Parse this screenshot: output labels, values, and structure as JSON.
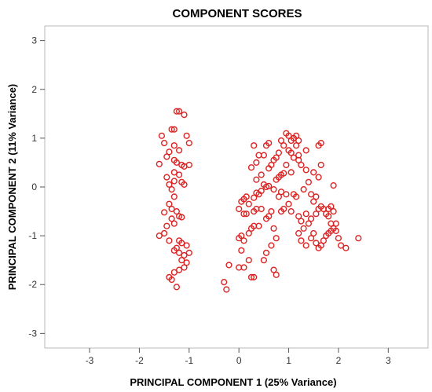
{
  "chart_data": {
    "type": "scatter",
    "title": "COMPONENT SCORES",
    "xlabel": "PRINCIPAL COMPONENT 1 (25% Variance)",
    "ylabel": "PRINCIPAL COMPONENT 2 (11% Variance)",
    "xlim": [
      -3.9,
      3.8
    ],
    "ylim": [
      -3.3,
      3.3
    ],
    "xticks": [
      -3,
      -2,
      -1,
      0,
      1,
      2,
      3
    ],
    "yticks": [
      -3,
      -2,
      -1,
      0,
      1,
      2,
      3
    ],
    "xtick_labels": [
      "-3",
      "-2",
      "-1",
      "0",
      "1",
      "2",
      "3"
    ],
    "ytick_labels": [
      "-3",
      "-2",
      "-1",
      "0",
      "1",
      "2",
      "3"
    ],
    "grid": false,
    "marker": "open-circle",
    "marker_color": "#dd2222",
    "series": [
      {
        "points": [
          [
            -1.25,
            1.55
          ],
          [
            -1.2,
            1.55
          ],
          [
            -1.1,
            1.48
          ],
          [
            -1.35,
            1.18
          ],
          [
            -1.3,
            1.18
          ],
          [
            -1.55,
            1.05
          ],
          [
            -1.05,
            1.05
          ],
          [
            -1.0,
            0.9
          ],
          [
            -1.5,
            0.9
          ],
          [
            -1.4,
            0.72
          ],
          [
            -1.3,
            0.55
          ],
          [
            -1.25,
            0.5
          ],
          [
            -1.15,
            0.45
          ],
          [
            -1.1,
            0.42
          ],
          [
            -1.6,
            0.47
          ],
          [
            -1.45,
            0.62
          ],
          [
            -1.3,
            0.3
          ],
          [
            -1.2,
            0.25
          ],
          [
            -1.3,
            0.12
          ],
          [
            -1.4,
            0.05
          ],
          [
            -1.15,
            0.1
          ],
          [
            -1.35,
            -0.05
          ],
          [
            -1.3,
            -0.2
          ],
          [
            -1.4,
            -0.35
          ],
          [
            -1.35,
            -0.45
          ],
          [
            -1.25,
            -0.5
          ],
          [
            -1.2,
            -0.6
          ],
          [
            -1.35,
            -0.65
          ],
          [
            -1.5,
            -0.52
          ],
          [
            -1.15,
            -0.62
          ],
          [
            -1.3,
            -0.75
          ],
          [
            -1.45,
            -0.8
          ],
          [
            -1.5,
            -0.95
          ],
          [
            -1.6,
            -1.0
          ],
          [
            -1.2,
            -1.1
          ],
          [
            -1.15,
            -1.15
          ],
          [
            -1.25,
            -1.25
          ],
          [
            -1.3,
            -1.3
          ],
          [
            -1.2,
            -1.35
          ],
          [
            -1.1,
            -1.4
          ],
          [
            -1.15,
            -1.5
          ],
          [
            -1.05,
            -1.55
          ],
          [
            -1.1,
            -1.65
          ],
          [
            -1.2,
            -1.7
          ],
          [
            -1.3,
            -1.75
          ],
          [
            -1.4,
            -1.85
          ],
          [
            -1.35,
            -1.9
          ],
          [
            -1.25,
            -2.05
          ],
          [
            -1.4,
            -1.1
          ],
          [
            -1.05,
            -1.2
          ],
          [
            -1.0,
            -1.35
          ],
          [
            -1.0,
            0.45
          ],
          [
            -1.1,
            0.05
          ],
          [
            -1.45,
            0.2
          ],
          [
            -1.2,
            0.75
          ],
          [
            -1.3,
            0.85
          ],
          [
            -0.3,
            -1.95
          ],
          [
            -0.25,
            -2.1
          ],
          [
            -0.2,
            -1.6
          ],
          [
            0.0,
            -1.65
          ],
          [
            0.1,
            -1.65
          ],
          [
            0.25,
            -1.85
          ],
          [
            0.3,
            -1.85
          ],
          [
            0.2,
            -1.5
          ],
          [
            0.05,
            -1.3
          ],
          [
            0.1,
            -1.1
          ],
          [
            0.2,
            -0.95
          ],
          [
            0.25,
            -0.85
          ],
          [
            0.3,
            -0.8
          ],
          [
            0.4,
            -0.8
          ],
          [
            0.1,
            -0.55
          ],
          [
            0.15,
            -0.55
          ],
          [
            0.3,
            -0.5
          ],
          [
            0.35,
            -0.45
          ],
          [
            0.45,
            -0.45
          ],
          [
            0.0,
            -0.45
          ],
          [
            0.05,
            -0.3
          ],
          [
            0.1,
            -0.25
          ],
          [
            0.15,
            -0.2
          ],
          [
            0.2,
            -0.35
          ],
          [
            0.3,
            -0.22
          ],
          [
            0.35,
            -0.12
          ],
          [
            0.4,
            -0.15
          ],
          [
            0.45,
            -0.08
          ],
          [
            0.5,
            0.05
          ],
          [
            0.55,
            0.0
          ],
          [
            0.6,
            0.02
          ],
          [
            0.65,
            -0.5
          ],
          [
            0.6,
            -0.6
          ],
          [
            0.7,
            -0.85
          ],
          [
            0.75,
            -1.05
          ],
          [
            0.65,
            -1.2
          ],
          [
            0.55,
            -1.35
          ],
          [
            0.5,
            -1.5
          ],
          [
            0.7,
            -1.7
          ],
          [
            0.75,
            -1.8
          ],
          [
            0.0,
            -1.05
          ],
          [
            0.05,
            -1.0
          ],
          [
            0.85,
            -0.5
          ],
          [
            0.9,
            -0.45
          ],
          [
            0.8,
            -0.2
          ],
          [
            0.85,
            -0.1
          ],
          [
            0.95,
            -0.15
          ],
          [
            0.75,
            0.15
          ],
          [
            0.8,
            0.2
          ],
          [
            0.85,
            0.25
          ],
          [
            0.9,
            0.28
          ],
          [
            0.6,
            0.38
          ],
          [
            0.65,
            0.45
          ],
          [
            0.7,
            0.55
          ],
          [
            0.75,
            0.6
          ],
          [
            0.8,
            0.7
          ],
          [
            0.9,
            0.85
          ],
          [
            0.85,
            0.95
          ],
          [
            0.95,
            1.1
          ],
          [
            1.0,
            1.05
          ],
          [
            1.05,
            0.95
          ],
          [
            1.1,
            1.0
          ],
          [
            1.15,
            1.05
          ],
          [
            1.2,
            0.95
          ],
          [
            1.15,
            0.85
          ],
          [
            1.0,
            0.75
          ],
          [
            1.05,
            0.7
          ],
          [
            1.1,
            0.6
          ],
          [
            1.2,
            0.55
          ],
          [
            1.25,
            0.45
          ],
          [
            1.35,
            0.35
          ],
          [
            1.5,
            0.3
          ],
          [
            1.6,
            0.2
          ],
          [
            1.4,
            0.1
          ],
          [
            1.3,
            -0.05
          ],
          [
            1.1,
            -0.15
          ],
          [
            1.15,
            -0.2
          ],
          [
            1.0,
            -0.35
          ],
          [
            1.05,
            -0.5
          ],
          [
            1.2,
            -0.6
          ],
          [
            1.25,
            -0.7
          ],
          [
            1.3,
            -0.85
          ],
          [
            1.2,
            -0.95
          ],
          [
            1.25,
            -1.1
          ],
          [
            1.35,
            -1.2
          ],
          [
            1.45,
            -1.05
          ],
          [
            1.5,
            -0.95
          ],
          [
            1.55,
            -1.15
          ],
          [
            1.6,
            -1.25
          ],
          [
            1.65,
            -1.2
          ],
          [
            1.7,
            -1.1
          ],
          [
            1.75,
            -1.0
          ],
          [
            1.8,
            -0.95
          ],
          [
            1.85,
            -0.9
          ],
          [
            1.9,
            -0.85
          ],
          [
            1.95,
            -0.9
          ],
          [
            1.85,
            -0.75
          ],
          [
            1.8,
            -0.6
          ],
          [
            1.75,
            -0.55
          ],
          [
            1.7,
            -0.45
          ],
          [
            1.65,
            -0.4
          ],
          [
            1.8,
            -0.45
          ],
          [
            1.9,
            -0.5
          ],
          [
            1.85,
            -0.4
          ],
          [
            1.5,
            -0.3
          ],
          [
            1.45,
            -0.15
          ],
          [
            1.55,
            -0.2
          ],
          [
            1.6,
            -0.45
          ],
          [
            1.55,
            -0.55
          ],
          [
            1.4,
            -0.75
          ],
          [
            1.45,
            -0.65
          ],
          [
            1.35,
            -0.55
          ],
          [
            2.0,
            -1.05
          ],
          [
            2.05,
            -1.2
          ],
          [
            2.15,
            -1.25
          ],
          [
            2.4,
            -1.05
          ],
          [
            1.9,
            0.03
          ],
          [
            1.95,
            -0.75
          ],
          [
            1.6,
            0.85
          ],
          [
            1.65,
            0.9
          ],
          [
            1.65,
            0.45
          ],
          [
            0.3,
            0.85
          ],
          [
            0.35,
            0.5
          ],
          [
            0.4,
            0.65
          ],
          [
            0.55,
            0.85
          ],
          [
            0.5,
            0.65
          ],
          [
            0.25,
            0.4
          ],
          [
            0.6,
            0.9
          ],
          [
            0.45,
            0.25
          ],
          [
            0.35,
            0.15
          ],
          [
            0.7,
            -0.05
          ],
          [
            0.95,
            0.45
          ],
          [
            1.05,
            0.3
          ],
          [
            1.35,
            0.75
          ],
          [
            1.2,
            0.65
          ],
          [
            0.55,
            -0.65
          ]
        ]
      }
    ]
  }
}
